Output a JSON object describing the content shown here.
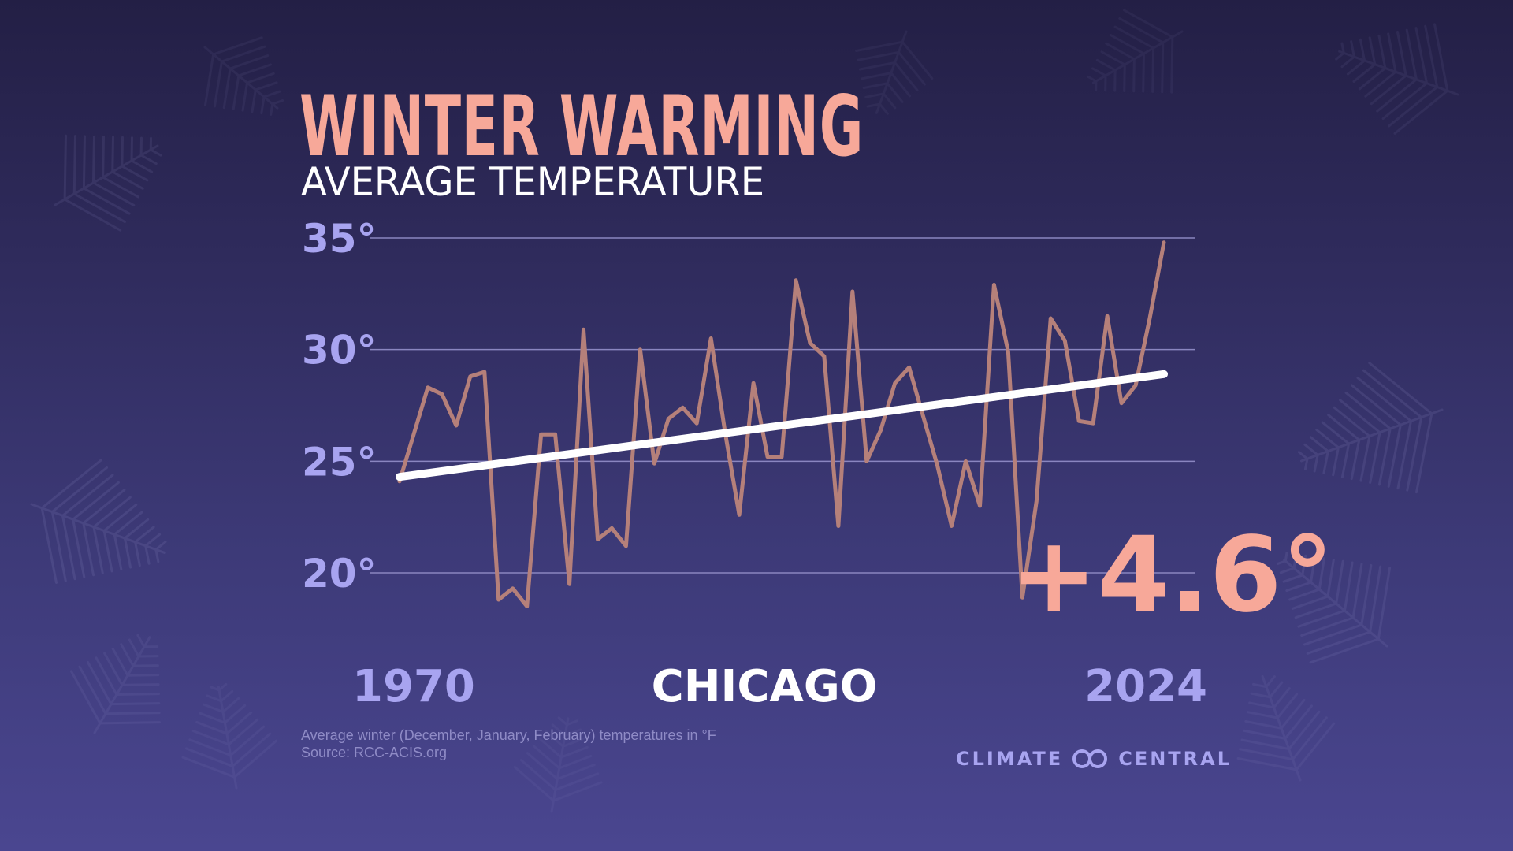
{
  "header": {
    "title": "WINTER WARMING",
    "subtitle": "AVERAGE TEMPERATURE"
  },
  "chart_data": {
    "type": "line",
    "title": "WINTER WARMING",
    "subtitle": "AVERAGE TEMPERATURE",
    "location": "CHICAGO",
    "x": [
      1970,
      1971,
      1972,
      1973,
      1974,
      1975,
      1976,
      1977,
      1978,
      1979,
      1980,
      1981,
      1982,
      1983,
      1984,
      1985,
      1986,
      1987,
      1988,
      1989,
      1990,
      1991,
      1992,
      1993,
      1994,
      1995,
      1996,
      1997,
      1998,
      1999,
      2000,
      2001,
      2002,
      2003,
      2004,
      2005,
      2006,
      2007,
      2008,
      2009,
      2010,
      2011,
      2012,
      2013,
      2014,
      2015,
      2016,
      2017,
      2018,
      2019,
      2020,
      2021,
      2022,
      2023,
      2024
    ],
    "series": [
      {
        "values": [
          24.1,
          26.2,
          28.3,
          28.0,
          26.6,
          28.8,
          29.0,
          18.8,
          19.3,
          18.5,
          26.2,
          26.2,
          19.5,
          30.9,
          21.5,
          22.0,
          21.2,
          30.0,
          24.9,
          26.9,
          27.4,
          26.7,
          30.5,
          26.3,
          22.6,
          28.5,
          25.2,
          25.2,
          33.1,
          30.3,
          29.7,
          22.1,
          32.6,
          25.0,
          26.4,
          28.5,
          29.2,
          27.0,
          24.8,
          22.1,
          25.0,
          23.0,
          32.9,
          29.9,
          18.9,
          23.2,
          31.4,
          30.4,
          26.8,
          26.7,
          31.5,
          27.6,
          28.4,
          31.4,
          34.8
        ]
      }
    ],
    "trend": {
      "start_value": 24.3,
      "end_value": 28.9
    },
    "change_label": "+4.6°",
    "x_labels": [
      "1970",
      "2024"
    ],
    "y_ticks": [
      20,
      25,
      30,
      35
    ],
    "y_tick_labels": [
      "20°",
      "25°",
      "30°",
      "35°"
    ],
    "ylim": [
      17.5,
      35
    ],
    "xlim": [
      1970,
      2024
    ],
    "grid": true,
    "colors": {
      "series": "#b5807a",
      "trend": "#ffffff",
      "accent": "#f7a899",
      "ticks": "#a8a4f0",
      "grid": "#8a86c0"
    }
  },
  "footer": {
    "note": "Average winter (December, January, February) temperatures in °F",
    "source": "Source: RCC-ACIS.org",
    "logo_left": "CLIMATE",
    "logo_right": "CENTRAL",
    "logo_icon": "linked-rings-icon"
  }
}
